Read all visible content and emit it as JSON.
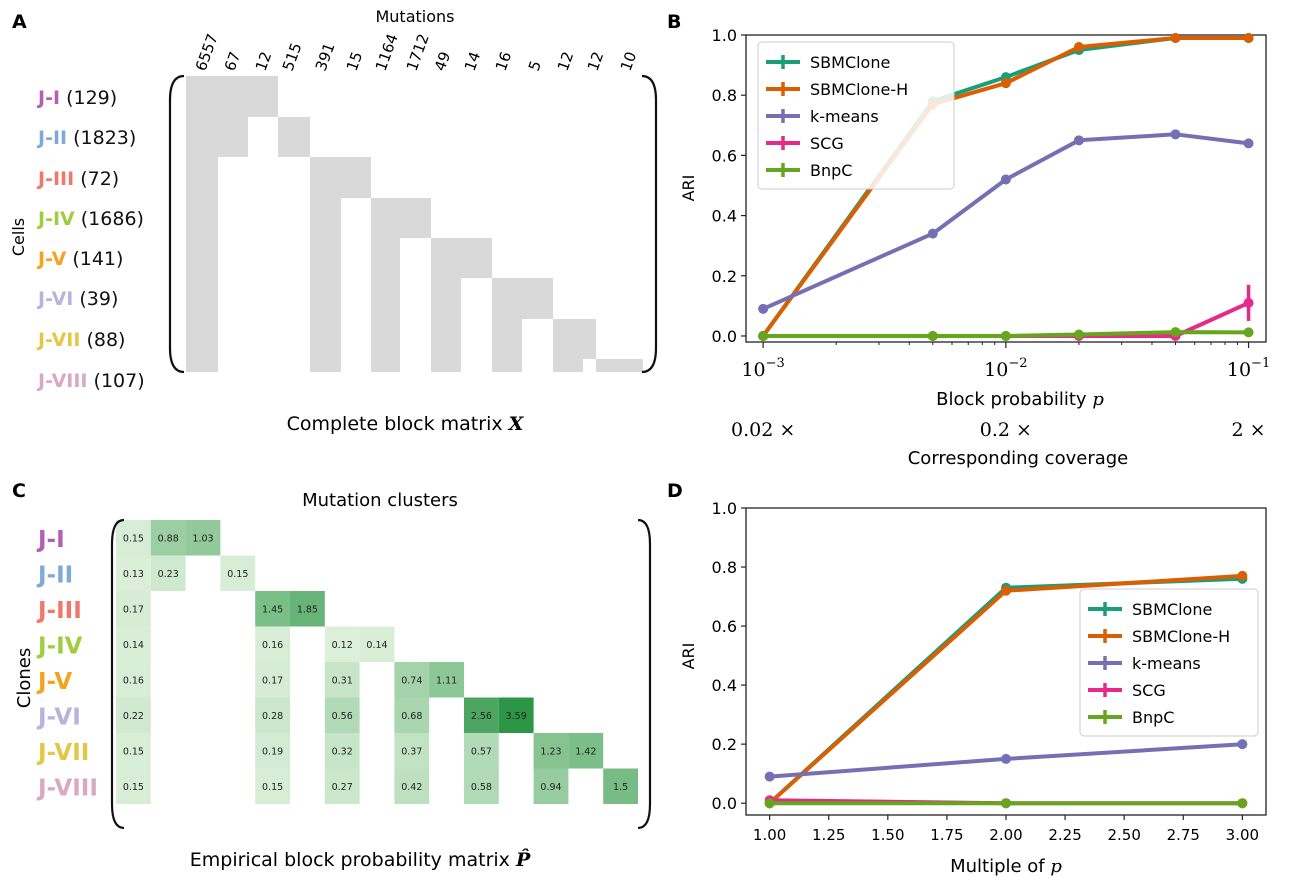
{
  "panels": {
    "a": "A",
    "b": "B",
    "c": "C",
    "d": "D"
  },
  "panel_a": {
    "top_label": "Mutations",
    "side_label": "Cells",
    "caption": "Complete block matrix ",
    "caption_symbol": "X",
    "column_counts": [
      "6557",
      "67",
      "12",
      "515",
      "391",
      "15",
      "1164",
      "1712",
      "49",
      "14",
      "16",
      "5",
      "12",
      "12",
      "10"
    ],
    "clones": [
      {
        "name": "J-I",
        "count": "(129)",
        "color": "#b35fb3"
      },
      {
        "name": "J-II",
        "count": "(1823)",
        "color": "#7fa9d6"
      },
      {
        "name": "J-III",
        "count": "(72)",
        "color": "#f0776a"
      },
      {
        "name": "J-IV",
        "count": "(1686)",
        "color": "#9fcd3e"
      },
      {
        "name": "J-V",
        "count": "(141)",
        "color": "#f5a31f"
      },
      {
        "name": "J-VI",
        "count": "(39)",
        "color": "#b5b4dc"
      },
      {
        "name": "J-VII",
        "count": "(88)",
        "color": "#e2c844"
      },
      {
        "name": "J-VIII",
        "count": "(107)",
        "color": "#d9a9c4"
      }
    ]
  },
  "panel_c": {
    "top_label": "Mutation clusters",
    "side_label": "Clones",
    "caption": "Empirical block probability matrix ",
    "caption_symbol": "P̂",
    "clone_names": [
      "J-I",
      "J-II",
      "J-III",
      "J-IV",
      "J-V",
      "J-VI",
      "J-VII",
      "J-VIII"
    ],
    "clone_colors": [
      "#b35fb3",
      "#7fa9d6",
      "#f0776a",
      "#9fcd3e",
      "#f5a31f",
      "#b5b4dc",
      "#e2c844",
      "#d9a9c4"
    ],
    "rows": [
      [
        "0.15",
        "0.88",
        "1.03",
        "",
        "",
        "",
        "",
        "",
        "",
        "",
        "",
        "",
        "",
        "",
        "",
        ""
      ],
      [
        "0.13",
        "0.23",
        "",
        "0.15",
        "",
        "",
        "",
        "",
        "",
        "",
        "",
        "",
        "",
        "",
        "",
        ""
      ],
      [
        "0.17",
        "",
        "",
        "",
        "1.45",
        "1.85",
        "",
        "",
        "",
        "",
        "",
        "",
        "",
        "",
        "",
        ""
      ],
      [
        "0.14",
        "",
        "",
        "",
        "0.16",
        "",
        "0.12",
        "0.14",
        "",
        "",
        "",
        "",
        "",
        "",
        "",
        ""
      ],
      [
        "0.16",
        "",
        "",
        "",
        "0.17",
        "",
        "0.31",
        "",
        "0.74",
        "1.11",
        "",
        "",
        "",
        "",
        "",
        ""
      ],
      [
        "0.22",
        "",
        "",
        "",
        "0.28",
        "",
        "0.56",
        "",
        "0.68",
        "",
        "2.56",
        "3.59",
        "",
        "",
        "",
        ""
      ],
      [
        "0.15",
        "",
        "",
        "",
        "0.19",
        "",
        "0.32",
        "",
        "0.37",
        "",
        "0.57",
        "",
        "1.23",
        "1.42",
        "",
        ""
      ],
      [
        "0.15",
        "",
        "",
        "",
        "0.15",
        "",
        "0.27",
        "",
        "0.42",
        "",
        "0.58",
        "",
        "0.94",
        "",
        "1.5",
        ""
      ]
    ]
  },
  "chart_data": [
    {
      "panel": "B",
      "type": "line",
      "x_scale": "log",
      "x": [
        0.001,
        0.005,
        0.01,
        0.02,
        0.05,
        0.1
      ],
      "xlim": [
        0.00085,
        0.118
      ],
      "ylim": [
        -0.02,
        1.0
      ],
      "x_ticks": [
        "10^-3",
        "10^-2",
        "10^-1"
      ],
      "y_ticks": [
        "0.0",
        "0.2",
        "0.4",
        "0.6",
        "0.8",
        "1.0"
      ],
      "xlabel": "Block probability ",
      "xlabel_symbol": "p",
      "secondary_xlabel": "Corresponding coverage",
      "secondary_ticks": [
        "0.02 ×",
        "0.2 ×",
        "2 ×"
      ],
      "ylabel": "ARI",
      "legend_position": "top-left",
      "series": [
        {
          "name": "SBMClone",
          "color": "#1b9e77",
          "values": [
            0.0,
            0.78,
            0.86,
            0.95,
            0.99,
            0.99
          ]
        },
        {
          "name": "SBMClone-H",
          "color": "#d95f02",
          "values": [
            0.0,
            0.77,
            0.84,
            0.96,
            0.99,
            0.99
          ]
        },
        {
          "name": "k-means",
          "color": "#7570b3",
          "values": [
            0.09,
            0.34,
            0.52,
            0.65,
            0.67,
            0.64
          ]
        },
        {
          "name": "SCG",
          "color": "#e7298a",
          "values": [
            0.0,
            0.0,
            0.0,
            0.0,
            0.0,
            0.11
          ],
          "error": [
            0,
            0,
            0,
            0,
            0,
            0.06
          ]
        },
        {
          "name": "BnpC",
          "color": "#66a61e",
          "values": [
            0.0,
            0.0,
            0.0,
            0.005,
            0.013,
            0.012
          ]
        }
      ]
    },
    {
      "panel": "D",
      "type": "line",
      "x": [
        1.0,
        2.0,
        3.0
      ],
      "xlim": [
        0.9,
        3.1
      ],
      "ylim": [
        -0.04,
        1.0
      ],
      "x_ticks": [
        "1.00",
        "1.25",
        "1.50",
        "1.75",
        "2.00",
        "2.25",
        "2.50",
        "2.75",
        "3.00"
      ],
      "y_ticks": [
        "0.0",
        "0.2",
        "0.4",
        "0.6",
        "0.8",
        "1.0"
      ],
      "xlabel": "Multiple of ",
      "xlabel_symbol": "p",
      "ylabel": "ARI",
      "legend_position": "center-right",
      "series": [
        {
          "name": "SBMClone",
          "color": "#1b9e77",
          "values": [
            0.0,
            0.73,
            0.76
          ]
        },
        {
          "name": "SBMClone-H",
          "color": "#d95f02",
          "values": [
            0.0,
            0.72,
            0.77
          ]
        },
        {
          "name": "k-means",
          "color": "#7570b3",
          "values": [
            0.09,
            0.15,
            0.2
          ]
        },
        {
          "name": "SCG",
          "color": "#e7298a",
          "values": [
            0.01,
            0.0,
            0.0
          ]
        },
        {
          "name": "BnpC",
          "color": "#66a61e",
          "values": [
            0.0,
            0.0,
            0.0
          ]
        }
      ]
    }
  ]
}
